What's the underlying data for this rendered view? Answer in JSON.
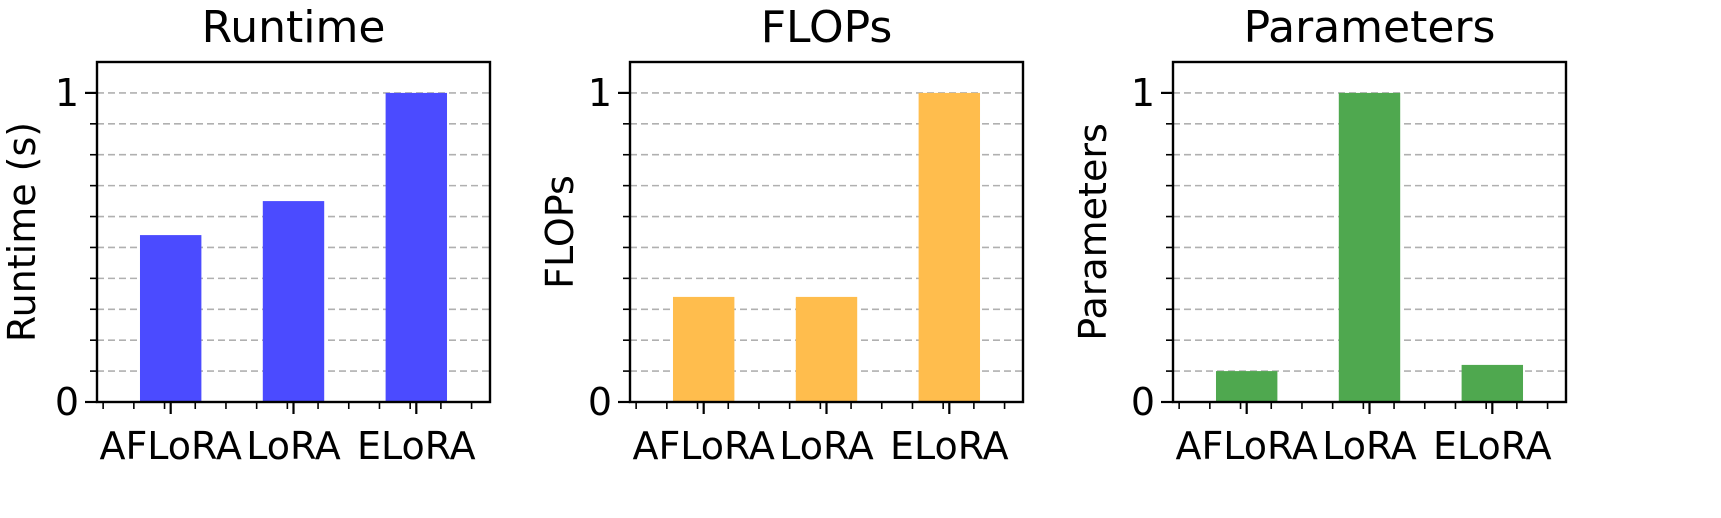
{
  "chart_data": [
    {
      "type": "bar",
      "title": "Runtime",
      "ylabel": "Runtime (s)",
      "xlabel": "",
      "categories": [
        "AFLoRA",
        "LoRA",
        "ELoRA"
      ],
      "values": [
        0.54,
        0.65,
        1.0
      ],
      "ylim": [
        0,
        1.1
      ],
      "yticks": [
        "0",
        "1"
      ],
      "color": "#4b4bff",
      "grid": "y, dashed"
    },
    {
      "type": "bar",
      "title": "FLOPs",
      "ylabel": "FLOPs",
      "xlabel": "",
      "categories": [
        "AFLoRA",
        "LoRA",
        "ELoRA"
      ],
      "values": [
        0.34,
        0.34,
        1.0
      ],
      "ylim": [
        0,
        1.1
      ],
      "yticks": [
        "0",
        "1"
      ],
      "color": "#ffbd4d",
      "grid": "y, dashed"
    },
    {
      "type": "bar",
      "title": "Parameters",
      "ylabel": "Parameters",
      "xlabel": "",
      "categories": [
        "AFLoRA",
        "LoRA",
        "ELoRA"
      ],
      "values": [
        0.1,
        1.0,
        0.12
      ],
      "ylim": [
        0,
        1.1
      ],
      "yticks": [
        "0",
        "1"
      ],
      "color": "#4fa84f",
      "grid": "y, dashed"
    }
  ]
}
